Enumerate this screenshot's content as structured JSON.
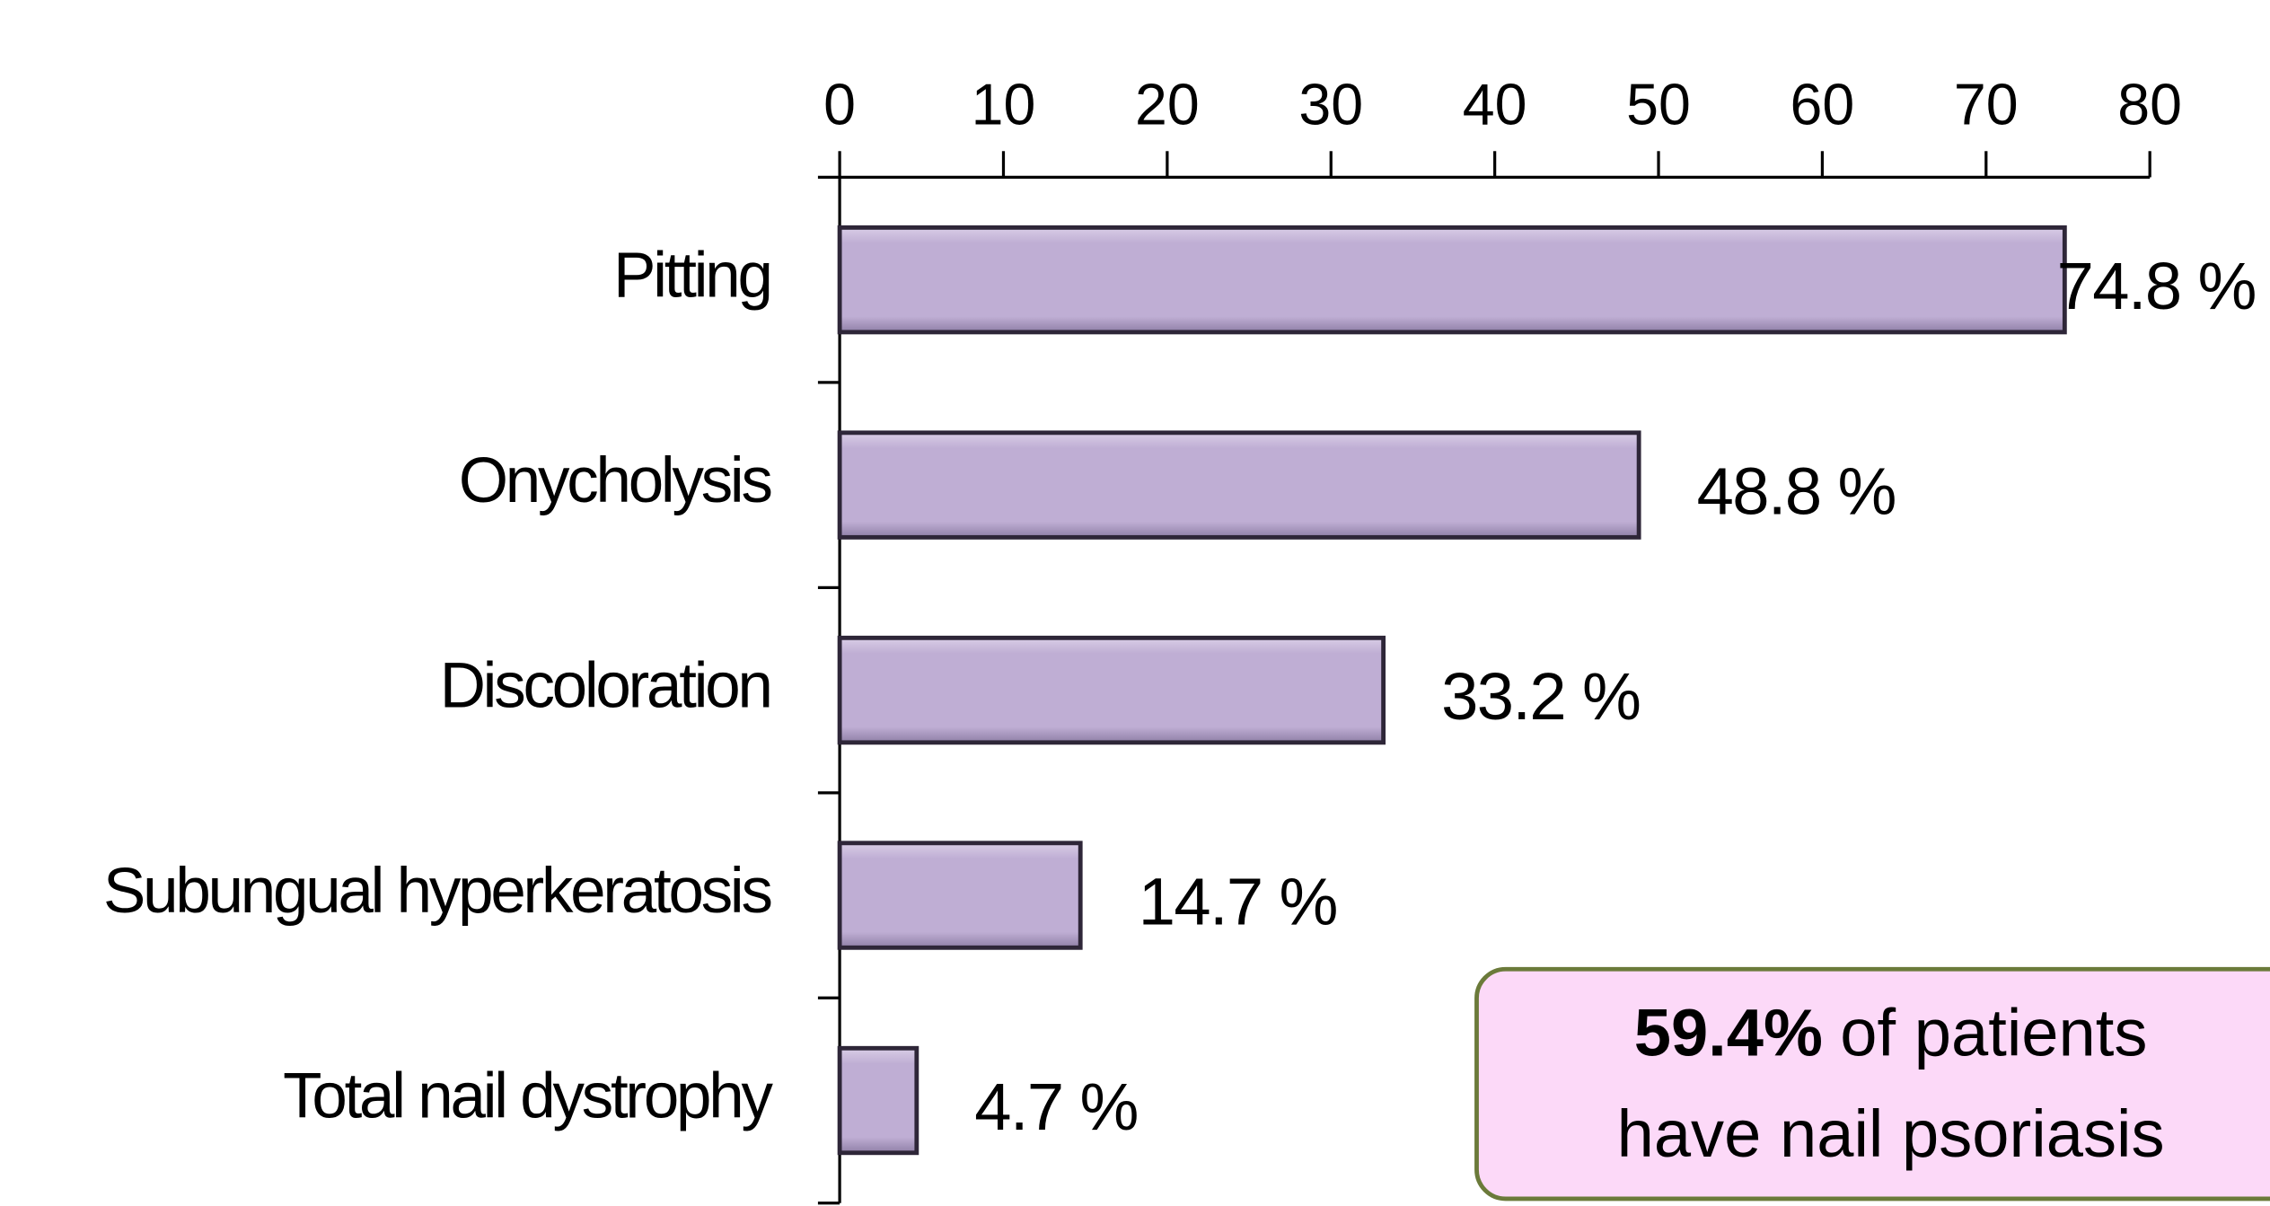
{
  "chart_data": {
    "type": "bar",
    "orientation": "horizontal",
    "categories": [
      "Pitting",
      "Onycholysis",
      "Discoloration",
      "Subungual hyperkeratosis",
      "Total nail dystrophy"
    ],
    "values": [
      74.8,
      48.8,
      33.2,
      14.7,
      4.7
    ],
    "value_labels": [
      "74.8 %",
      "48.8 %",
      "33.2 %",
      "14.7 %",
      "4.7 %"
    ],
    "color": "#bfaed4",
    "xlim": [
      0,
      80
    ],
    "xticks": [
      0,
      10,
      20,
      30,
      40,
      50,
      60,
      70,
      80
    ],
    "grid": false,
    "annotation": {
      "bold": "59.4%",
      "text": "of patients",
      "line2": "have nail psoriasis"
    }
  }
}
